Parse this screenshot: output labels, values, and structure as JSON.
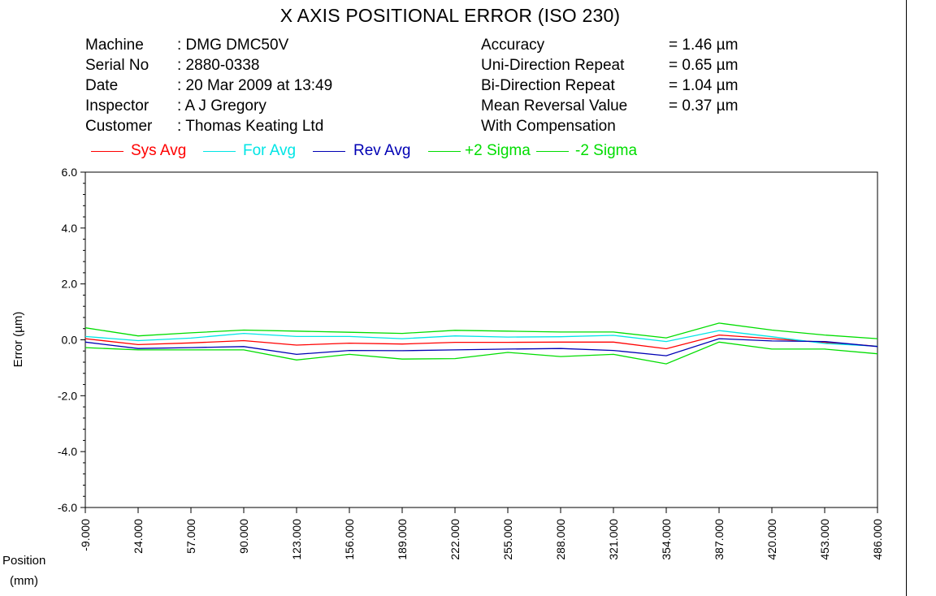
{
  "header": {
    "title": "X AXIS POSITIONAL ERROR (ISO 230)",
    "left_rows": [
      {
        "key": "Machine",
        "value": ": DMG DMC50V"
      },
      {
        "key": "Serial No",
        "value": ": 2880-0338"
      },
      {
        "key": "Date",
        "value": ": 20 Mar 2009 at 13:49"
      },
      {
        "key": "Inspector",
        "value": ": A J Gregory"
      },
      {
        "key": "Customer",
        "value": ": Thomas Keating Ltd"
      }
    ],
    "right_rows": [
      {
        "key": "Accuracy",
        "value": "= 1.46 µm"
      },
      {
        "key": "Uni-Direction Repeat",
        "value": "= 0.65 µm"
      },
      {
        "key": "Bi-Direction Repeat",
        "value": "= 1.04 µm"
      },
      {
        "key": "Mean Reversal Value",
        "value": "= 0.37 µm"
      },
      {
        "key": "With Compensation",
        "value": ""
      }
    ]
  },
  "axis_labels": {
    "ylabel": "Error (µm)",
    "xlabel_line1": "Position",
    "xlabel_line2": "(mm)"
  },
  "chart_data": {
    "type": "line",
    "title": "X AXIS POSITIONAL ERROR (ISO 230)",
    "xlabel": "Position (mm)",
    "ylabel": "Error (µm)",
    "ylim": [
      -6.0,
      6.0
    ],
    "yticks": [
      "6.0",
      "4.0",
      "2.0",
      "0.0",
      "-2.0",
      "-4.0",
      "-6.0"
    ],
    "x": [
      "-9.000",
      "24.000",
      "57.000",
      "90.000",
      "123.000",
      "156.000",
      "189.000",
      "222.000",
      "255.000",
      "288.000",
      "321.000",
      "354.000",
      "387.000",
      "420.000",
      "453.000",
      "486.000"
    ],
    "grid": false,
    "legend_position": "top",
    "series": [
      {
        "name": "Sys Avg",
        "color": "#ff0000",
        "values": [
          0.04,
          -0.17,
          -0.11,
          -0.03,
          -0.19,
          -0.12,
          -0.15,
          -0.09,
          -0.09,
          -0.08,
          -0.08,
          -0.32,
          0.17,
          0.04,
          -0.09,
          -0.23
        ]
      },
      {
        "name": "For Avg",
        "color": "#00e5e5",
        "values": [
          0.12,
          -0.03,
          0.06,
          0.23,
          0.12,
          0.12,
          0.04,
          0.14,
          0.1,
          0.11,
          0.16,
          -0.06,
          0.33,
          0.11,
          -0.13,
          -0.23
        ]
      },
      {
        "name": "Rev Avg",
        "color": "#0000b4",
        "values": [
          -0.08,
          -0.31,
          -0.28,
          -0.24,
          -0.52,
          -0.38,
          -0.39,
          -0.36,
          -0.33,
          -0.31,
          -0.38,
          -0.57,
          0.04,
          -0.04,
          -0.06,
          -0.24
        ]
      },
      {
        "name": "+2 Sigma",
        "color": "#00dd00",
        "values": [
          0.43,
          0.14,
          0.25,
          0.35,
          0.31,
          0.27,
          0.23,
          0.34,
          0.31,
          0.28,
          0.28,
          0.07,
          0.6,
          0.35,
          0.17,
          0.04
        ]
      },
      {
        "name": "-2 Sigma",
        "color": "#00dd00",
        "values": [
          -0.28,
          -0.36,
          -0.36,
          -0.36,
          -0.72,
          -0.52,
          -0.69,
          -0.67,
          -0.45,
          -0.6,
          -0.52,
          -0.86,
          -0.08,
          -0.33,
          -0.33,
          -0.5
        ]
      }
    ]
  }
}
